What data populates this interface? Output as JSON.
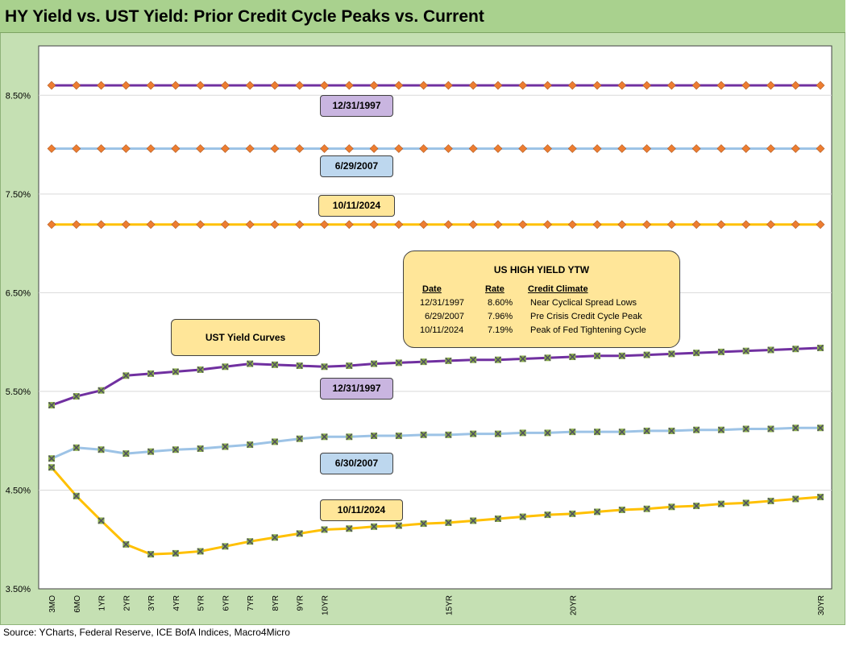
{
  "title": "HY Yield vs. UST Yield: Prior Credit Cycle Peaks vs. Current",
  "source": "Source: YCharts, Federal Reserve, ICE BofA Indices, Macro4Micro",
  "colors": {
    "purple": "#7030a0",
    "blue": "#9dc3e6",
    "yellow": "#ffc000",
    "hy_marker": "#ed7d31",
    "ust_marker": "#8db04a",
    "ust_marker_x": "#505060",
    "plot_border": "#404040",
    "grid": "#d9d9d9"
  },
  "chart_data": {
    "type": "line",
    "x_axis_labels": [
      "3MO",
      "6MO",
      "1YR",
      "2YR",
      "3YR",
      "4YR",
      "5YR",
      "6YR",
      "7YR",
      "8YR",
      "9YR",
      "10YR",
      "",
      "",
      "",
      "",
      "15YR",
      "",
      "",
      "",
      "",
      "20YR",
      "",
      "",
      "",
      "",
      "",
      "",
      "",
      "",
      "",
      "30YR"
    ],
    "y_ticks": [
      "3.50%",
      "4.50%",
      "5.50%",
      "6.50%",
      "7.50%",
      "8.50%"
    ],
    "ylim": [
      3.5,
      9.0
    ],
    "grid": true,
    "series": [
      {
        "name": "HY 12/31/1997",
        "group": "hy",
        "color": "purple",
        "values": [
          8.6,
          8.6,
          8.6,
          8.6,
          8.6,
          8.6,
          8.6,
          8.6,
          8.6,
          8.6,
          8.6,
          8.6,
          8.6,
          8.6,
          8.6,
          8.6,
          8.6,
          8.6,
          8.6,
          8.6,
          8.6,
          8.6,
          8.6,
          8.6,
          8.6,
          8.6,
          8.6,
          8.6,
          8.6,
          8.6,
          8.6,
          8.6
        ]
      },
      {
        "name": "HY 6/29/2007",
        "group": "hy",
        "color": "blue",
        "values": [
          7.96,
          7.96,
          7.96,
          7.96,
          7.96,
          7.96,
          7.96,
          7.96,
          7.96,
          7.96,
          7.96,
          7.96,
          7.96,
          7.96,
          7.96,
          7.96,
          7.96,
          7.96,
          7.96,
          7.96,
          7.96,
          7.96,
          7.96,
          7.96,
          7.96,
          7.96,
          7.96,
          7.96,
          7.96,
          7.96,
          7.96,
          7.96
        ]
      },
      {
        "name": "HY 10/11/2024",
        "group": "hy",
        "color": "yellow",
        "values": [
          7.19,
          7.19,
          7.19,
          7.19,
          7.19,
          7.19,
          7.19,
          7.19,
          7.19,
          7.19,
          7.19,
          7.19,
          7.19,
          7.19,
          7.19,
          7.19,
          7.19,
          7.19,
          7.19,
          7.19,
          7.19,
          7.19,
          7.19,
          7.19,
          7.19,
          7.19,
          7.19,
          7.19,
          7.19,
          7.19,
          7.19,
          7.19
        ]
      },
      {
        "name": "UST 12/31/1997",
        "group": "ust",
        "color": "purple",
        "values": [
          5.36,
          5.45,
          5.51,
          5.66,
          5.68,
          5.7,
          5.72,
          5.75,
          5.78,
          5.77,
          5.76,
          5.75,
          5.76,
          5.78,
          5.79,
          5.8,
          5.81,
          5.82,
          5.82,
          5.83,
          5.84,
          5.85,
          5.86,
          5.86,
          5.87,
          5.88,
          5.89,
          5.9,
          5.91,
          5.92,
          5.93,
          5.94
        ]
      },
      {
        "name": "UST 6/30/2007",
        "group": "ust",
        "color": "blue",
        "values": [
          4.82,
          4.93,
          4.91,
          4.87,
          4.89,
          4.91,
          4.92,
          4.94,
          4.96,
          4.99,
          5.02,
          5.04,
          5.04,
          5.05,
          5.05,
          5.06,
          5.06,
          5.07,
          5.07,
          5.08,
          5.08,
          5.09,
          5.09,
          5.09,
          5.1,
          5.1,
          5.11,
          5.11,
          5.12,
          5.12,
          5.13,
          5.13
        ]
      },
      {
        "name": "UST 10/11/2024",
        "group": "ust",
        "color": "yellow",
        "values": [
          4.73,
          4.44,
          4.19,
          3.95,
          3.85,
          3.86,
          3.88,
          3.93,
          3.98,
          4.02,
          4.06,
          4.1,
          4.11,
          4.13,
          4.14,
          4.16,
          4.17,
          4.19,
          4.21,
          4.23,
          4.25,
          4.26,
          4.28,
          4.3,
          4.31,
          4.33,
          4.34,
          4.36,
          4.37,
          4.39,
          4.41,
          4.43
        ]
      }
    ],
    "annotations": {
      "hy_labels": [
        "12/31/1997",
        "6/29/2007",
        "10/11/2024"
      ],
      "ust_labels": [
        "12/31/1997",
        "6/30/2007",
        "10/11/2024"
      ],
      "ust_box": "UST  Yield Curves",
      "hy_table": {
        "title": "US HIGH YIELD YTW",
        "headers": [
          "Date",
          "Rate",
          "Credit Climate"
        ],
        "rows": [
          [
            "12/31/1997",
            "8.60%",
            "Near Cyclical Spread Lows"
          ],
          [
            "6/29/2007",
            "7.96%",
            "Pre Crisis Credit Cycle Peak"
          ],
          [
            "10/11/2024",
            "7.19%",
            "Peak of Fed Tightening Cycle"
          ]
        ]
      }
    }
  }
}
